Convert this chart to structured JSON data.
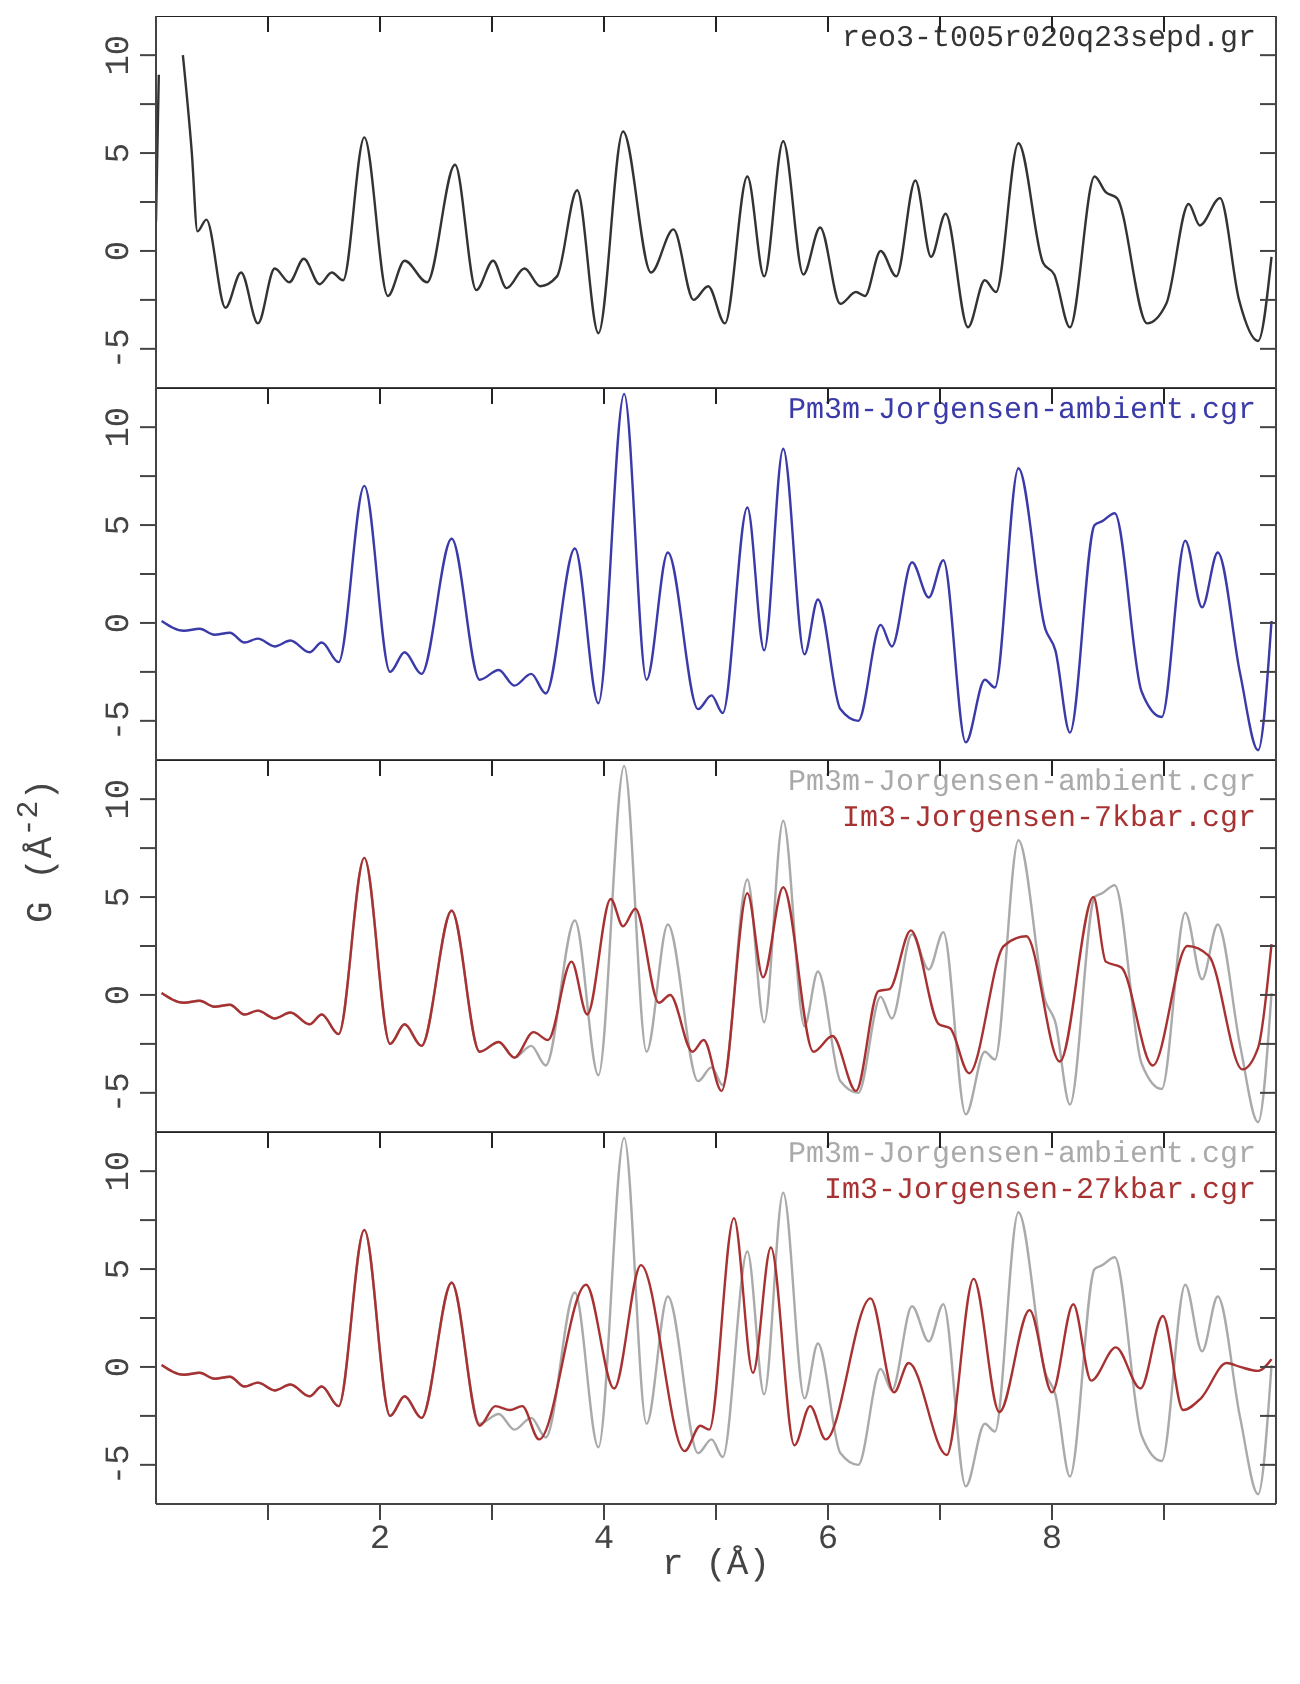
{
  "chart_data": [
    {
      "type": "line",
      "xlim": [
        0,
        10
      ],
      "xticks": [
        {
          "value": 1,
          "label": null
        },
        2,
        {
          "value": 3,
          "label": null
        },
        4,
        {
          "value": 5,
          "label": null
        },
        6,
        {
          "value": 7,
          "label": null
        },
        8,
        {
          "value": 9,
          "label": null
        }
      ],
      "ylim": [
        -7,
        12
      ],
      "yticks": [
        -5,
        {
          "value": -2.5,
          "label": null
        },
        0,
        {
          "value": 2.5,
          "label": null
        },
        5,
        {
          "value": 7.5,
          "label": null
        },
        10
      ],
      "tick_labels": "y",
      "series": [
        {
          "name": "reo3-t005r020q23sepd.gr",
          "color": "#333333",
          "x": [
            0,
            0.025,
            0.04,
            0.2,
            0.24,
            0.32,
            0.37,
            0.45,
            0.62,
            0.76,
            0.91,
            1.06,
            1.19,
            1.32,
            1.46,
            1.57,
            1.67,
            1.86,
            2.07,
            2.22,
            2.42,
            2.67,
            2.86,
            3.01,
            3.13,
            3.29,
            3.43,
            3.58,
            3.76,
            3.95,
            4.17,
            4.42,
            4.62,
            4.8,
            4.93,
            5.08,
            5.28,
            5.43,
            5.6,
            5.78,
            5.93,
            6.11,
            6.25,
            6.33,
            6.47,
            6.61,
            6.78,
            6.92,
            7.05,
            7.25,
            7.4,
            7.5,
            7.7,
            7.92,
            8.02,
            8.16,
            8.38,
            8.48,
            8.58,
            8.85,
            9.02,
            9.22,
            9.32,
            9.5,
            9.67,
            9.84,
            9.96
          ],
          "values": [
            1.5,
            9,
            null,
            null,
            10,
            5,
            1,
            1.6,
            -2.9,
            -1.1,
            -3.7,
            -0.9,
            -1.6,
            -0.4,
            -1.7,
            -1.1,
            -1.5,
            5.8,
            -2.3,
            -0.5,
            -1.6,
            4.4,
            -2,
            -0.5,
            -1.9,
            -0.9,
            -1.8,
            -1.3,
            3.1,
            -4.2,
            6.1,
            -1.1,
            1.1,
            -2.5,
            -1.8,
            -3.7,
            3.8,
            -1.3,
            5.6,
            -1.2,
            1.2,
            -2.7,
            -2.1,
            -2.3,
            0,
            -1.3,
            3.6,
            -0.3,
            1.9,
            -3.9,
            -1.5,
            -2.1,
            5.5,
            -0.6,
            -1.2,
            -3.9,
            3.8,
            3,
            2.7,
            -3.7,
            -2.7,
            2.4,
            1.3,
            2.7,
            -2.5,
            -4.6,
            -0.3
          ]
        }
      ]
    },
    {
      "type": "line",
      "xlim": [
        0,
        10
      ],
      "xticks": [
        {
          "value": 1,
          "label": null
        },
        2,
        {
          "value": 3,
          "label": null
        },
        4,
        {
          "value": 5,
          "label": null
        },
        6,
        {
          "value": 7,
          "label": null
        },
        8,
        {
          "value": 9,
          "label": null
        }
      ],
      "ylim": [
        -7,
        12
      ],
      "yticks": [
        -5,
        {
          "value": -2.5,
          "label": null
        },
        0,
        {
          "value": 2.5,
          "label": null
        },
        5,
        {
          "value": 7.5,
          "label": null
        },
        10
      ],
      "tick_labels": "y",
      "series": [
        {
          "name": "Pm3m-Jorgensen-ambient.cgr",
          "color": "#3a3aa8",
          "x": [
            0.05,
            0.25,
            0.39,
            0.52,
            0.66,
            0.79,
            0.91,
            1.06,
            1.2,
            1.37,
            1.48,
            1.63,
            1.86,
            2.09,
            2.22,
            2.37,
            2.64,
            2.89,
            3.06,
            3.2,
            3.35,
            3.48,
            3.74,
            3.95,
            4.18,
            4.38,
            4.57,
            4.84,
            4.96,
            5.06,
            5.28,
            5.43,
            5.6,
            5.79,
            5.91,
            6.11,
            6.27,
            6.47,
            6.57,
            6.75,
            6.9,
            7.03,
            7.23,
            7.4,
            7.49,
            7.7,
            7.94,
            8.03,
            8.16,
            8.38,
            8.45,
            8.56,
            8.8,
            8.98,
            9.19,
            9.34,
            9.48,
            9.68,
            9.84,
            9.96
          ],
          "values": [
            0.1,
            -0.4,
            -0.3,
            -0.6,
            -0.5,
            -1,
            -0.8,
            -1.2,
            -0.9,
            -1.5,
            -1,
            -2,
            7,
            -2.5,
            -1.5,
            -2.6,
            4.3,
            -2.9,
            -2.4,
            -3.2,
            -2.6,
            -3.6,
            3.8,
            -4.1,
            11.7,
            -2.9,
            3.6,
            -4.4,
            -3.7,
            -4.6,
            5.9,
            -1.4,
            8.9,
            -1.6,
            1.2,
            -4.4,
            -5,
            -0.1,
            -1.2,
            3.1,
            1.3,
            3.2,
            -6.1,
            -2.9,
            -3.3,
            7.9,
            -0.3,
            -1.4,
            -5.6,
            5,
            5.2,
            5.6,
            -3.5,
            -4.8,
            4.2,
            0.8,
            3.6,
            -2.6,
            -6.5,
            0.1
          ]
        }
      ]
    },
    {
      "type": "line",
      "ylabel": "G (Å$^{-2}$)",
      "xlim": [
        0,
        10
      ],
      "xticks": [
        {
          "value": 1,
          "label": null
        },
        2,
        {
          "value": 3,
          "label": null
        },
        4,
        {
          "value": 5,
          "label": null
        },
        6,
        {
          "value": 7,
          "label": null
        },
        8,
        {
          "value": 9,
          "label": null
        }
      ],
      "ylim": [
        -7,
        12
      ],
      "yticks": [
        -5,
        {
          "value": -2.5,
          "label": null
        },
        0,
        {
          "value": 2.5,
          "label": null
        },
        5,
        {
          "value": 7.5,
          "label": null
        },
        10
      ],
      "tick_labels": "y",
      "series": [
        {
          "name": "Pm3m-Jorgensen-ambient.cgr",
          "color": "#aaaaaa",
          "x": [
            0.05,
            0.25,
            0.39,
            0.52,
            0.66,
            0.79,
            0.91,
            1.06,
            1.2,
            1.37,
            1.48,
            1.63,
            1.86,
            2.09,
            2.22,
            2.37,
            2.64,
            2.89,
            3.06,
            3.2,
            3.35,
            3.48,
            3.74,
            3.95,
            4.18,
            4.38,
            4.57,
            4.84,
            4.96,
            5.06,
            5.28,
            5.43,
            5.6,
            5.79,
            5.91,
            6.11,
            6.27,
            6.47,
            6.57,
            6.75,
            6.9,
            7.03,
            7.23,
            7.4,
            7.49,
            7.7,
            7.94,
            8.03,
            8.16,
            8.38,
            8.45,
            8.56,
            8.8,
            8.98,
            9.19,
            9.34,
            9.48,
            9.68,
            9.84,
            9.96
          ],
          "values": [
            0.1,
            -0.4,
            -0.3,
            -0.6,
            -0.5,
            -1,
            -0.8,
            -1.2,
            -0.9,
            -1.5,
            -1,
            -2,
            7,
            -2.5,
            -1.5,
            -2.6,
            4.3,
            -2.9,
            -2.4,
            -3.2,
            -2.6,
            -3.6,
            3.8,
            -4.1,
            11.7,
            -2.9,
            3.6,
            -4.4,
            -3.7,
            -4.6,
            5.9,
            -1.4,
            8.9,
            -1.6,
            1.2,
            -4.4,
            -5,
            -0.1,
            -1.2,
            3.1,
            1.3,
            3.2,
            -6.1,
            -2.9,
            -3.3,
            7.9,
            -0.3,
            -1.4,
            -5.6,
            5,
            5.2,
            5.6,
            -3.5,
            -4.8,
            4.2,
            0.8,
            3.6,
            -2.6,
            -6.5,
            0.1
          ]
        },
        {
          "name": "Im3-Jorgensen-7kbar.cgr",
          "color": "#a83232",
          "x": [
            0.05,
            0.25,
            0.39,
            0.52,
            0.66,
            0.79,
            0.91,
            1.06,
            1.2,
            1.37,
            1.48,
            1.63,
            1.86,
            2.09,
            2.22,
            2.37,
            2.64,
            2.89,
            3.06,
            3.2,
            3.37,
            3.5,
            3.71,
            3.85,
            4.06,
            4.17,
            4.28,
            4.49,
            4.59,
            4.79,
            4.89,
            5.05,
            5.28,
            5.42,
            5.6,
            5.87,
            6.04,
            6.25,
            6.45,
            6.55,
            6.74,
            6.99,
            7.09,
            7.26,
            7.57,
            7.77,
            8.07,
            8.37,
            8.48,
            8.62,
            8.9,
            9.21,
            9.4,
            9.7,
            9.84,
            9.96
          ],
          "values": [
            0.1,
            -0.4,
            -0.3,
            -0.6,
            -0.5,
            -1,
            -0.8,
            -1.2,
            -0.9,
            -1.5,
            -1,
            -2,
            7,
            -2.5,
            -1.5,
            -2.6,
            4.3,
            -2.9,
            -2.4,
            -3.2,
            -1.9,
            -2.3,
            1.7,
            -1,
            4.9,
            3.5,
            4.4,
            -0.4,
            0,
            -2.9,
            -2.3,
            -4.9,
            5.2,
            0.9,
            5.5,
            -2.9,
            -2.1,
            -4.9,
            0.2,
            0.3,
            3.3,
            -1.5,
            -1.7,
            -4,
            2.5,
            3,
            -3.4,
            5,
            1.7,
            1.4,
            -3.6,
            2.5,
            2,
            -3.8,
            -2.7,
            2.6
          ]
        }
      ]
    },
    {
      "type": "line",
      "xlabel": "r (Å)",
      "xlim": [
        0,
        10
      ],
      "xticks": [
        {
          "value": 1,
          "label": null
        },
        2,
        {
          "value": 3,
          "label": null
        },
        4,
        {
          "value": 5,
          "label": null
        },
        6,
        {
          "value": 7,
          "label": null
        },
        8,
        {
          "value": 9,
          "label": null
        }
      ],
      "ylim": [
        -7,
        12
      ],
      "yticks": [
        -5,
        {
          "value": -2.5,
          "label": null
        },
        0,
        {
          "value": 2.5,
          "label": null
        },
        5,
        {
          "value": 7.5,
          "label": null
        },
        10
      ],
      "series": [
        {
          "name": "Pm3m-Jorgensen-ambient.cgr",
          "color": "#aaaaaa",
          "x": [
            0.05,
            0.25,
            0.39,
            0.52,
            0.66,
            0.79,
            0.91,
            1.06,
            1.2,
            1.37,
            1.48,
            1.63,
            1.86,
            2.09,
            2.22,
            2.37,
            2.64,
            2.89,
            3.06,
            3.2,
            3.35,
            3.48,
            3.74,
            3.95,
            4.18,
            4.38,
            4.57,
            4.84,
            4.96,
            5.06,
            5.28,
            5.43,
            5.6,
            5.79,
            5.91,
            6.11,
            6.27,
            6.47,
            6.57,
            6.75,
            6.9,
            7.03,
            7.23,
            7.4,
            7.49,
            7.7,
            7.94,
            8.03,
            8.16,
            8.38,
            8.45,
            8.56,
            8.8,
            8.98,
            9.19,
            9.34,
            9.48,
            9.68,
            9.84,
            9.96
          ],
          "values": [
            0.1,
            -0.4,
            -0.3,
            -0.6,
            -0.5,
            -1,
            -0.8,
            -1.2,
            -0.9,
            -1.5,
            -1,
            -2,
            7,
            -2.5,
            -1.5,
            -2.6,
            4.3,
            -2.9,
            -2.4,
            -3.2,
            -2.6,
            -3.6,
            3.8,
            -4.1,
            11.7,
            -2.9,
            3.6,
            -4.4,
            -3.7,
            -4.6,
            5.9,
            -1.4,
            8.9,
            -1.6,
            1.2,
            -4.4,
            -5,
            -0.1,
            -1.2,
            3.1,
            1.3,
            3.2,
            -6.1,
            -2.9,
            -3.3,
            7.9,
            -0.3,
            -1.4,
            -5.6,
            5,
            5.2,
            5.6,
            -3.5,
            -4.8,
            4.2,
            0.8,
            3.6,
            -2.6,
            -6.5,
            0.1
          ]
        },
        {
          "name": "Im3-Jorgensen-27kbar.cgr",
          "color": "#a83232",
          "x": [
            0.05,
            0.25,
            0.39,
            0.52,
            0.66,
            0.79,
            0.91,
            1.06,
            1.2,
            1.37,
            1.48,
            1.63,
            1.86,
            2.09,
            2.22,
            2.37,
            2.64,
            2.89,
            3.03,
            3.16,
            3.27,
            3.42,
            3.84,
            4.09,
            4.33,
            4.72,
            4.86,
            4.94,
            5.16,
            5.33,
            5.49,
            5.7,
            5.84,
            5.98,
            6.38,
            6.59,
            6.72,
            7.06,
            7.3,
            7.53,
            7.8,
            8,
            8.19,
            8.35,
            8.57,
            8.79,
            8.99,
            9.17,
            9.33,
            9.56,
            9.68,
            9.84,
            9.96
          ],
          "values": [
            0.1,
            -0.4,
            -0.3,
            -0.6,
            -0.5,
            -1,
            -0.8,
            -1.2,
            -0.9,
            -1.5,
            -1,
            -2,
            7,
            -2.5,
            -1.5,
            -2.6,
            4.3,
            -3,
            -2,
            -2.2,
            -2,
            -3.7,
            4.2,
            -1.1,
            5.2,
            -4.3,
            -3,
            -3.2,
            7.6,
            -0.3,
            6.1,
            -4,
            -2,
            -3.7,
            3.5,
            -1.3,
            0.2,
            -4.5,
            4.5,
            -2.3,
            2.9,
            -1.3,
            3.2,
            -0.7,
            1,
            -1.1,
            2.6,
            -2.2,
            -1.6,
            0.2,
            0,
            -0.2,
            0.4
          ]
        }
      ]
    }
  ]
}
